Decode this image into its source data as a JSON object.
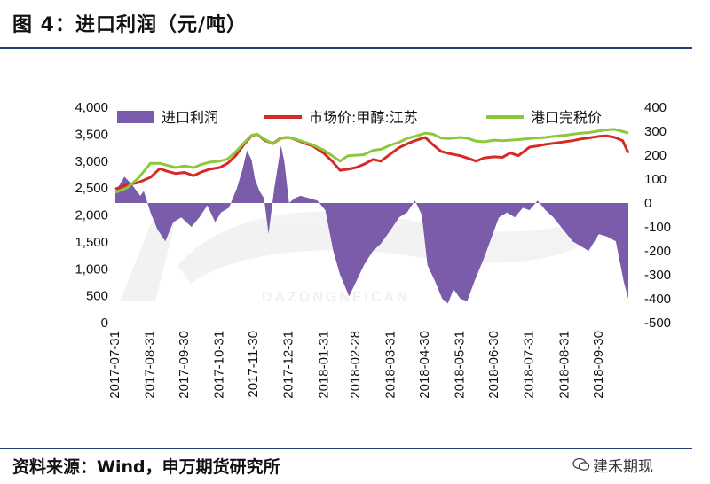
{
  "header": {
    "title": "图 4：进口利润（元/吨）"
  },
  "footer": {
    "source": "资料来源：Wind，申万期货研究所",
    "watermark": "建禾期现"
  },
  "chart_data": {
    "type": "line",
    "series": [
      {
        "name": "进口利润",
        "type": "area",
        "axis": "right",
        "color": "#7a5cab",
        "points": [
          [
            "2017-07-31",
            40
          ],
          [
            "2017-08-03",
            70
          ],
          [
            "2017-08-08",
            110
          ],
          [
            "2017-08-14",
            80
          ],
          [
            "2017-08-22",
            30
          ],
          [
            "2017-08-25",
            50
          ],
          [
            "2017-08-31",
            -40
          ],
          [
            "2017-09-06",
            -110
          ],
          [
            "2017-09-13",
            -160
          ],
          [
            "2017-09-20",
            -80
          ],
          [
            "2017-09-27",
            -60
          ],
          [
            "2017-10-06",
            -100
          ],
          [
            "2017-10-13",
            -60
          ],
          [
            "2017-10-20",
            -10
          ],
          [
            "2017-10-27",
            -80
          ],
          [
            "2017-11-01",
            -40
          ],
          [
            "2017-11-08",
            -20
          ],
          [
            "2017-11-15",
            60
          ],
          [
            "2017-11-20",
            140
          ],
          [
            "2017-11-24",
            220
          ],
          [
            "2017-11-28",
            180
          ],
          [
            "2017-12-01",
            100
          ],
          [
            "2017-12-05",
            50
          ],
          [
            "2017-12-09",
            20
          ],
          [
            "2017-12-13",
            -130
          ],
          [
            "2017-12-18",
            60
          ],
          [
            "2017-12-21",
            150
          ],
          [
            "2017-12-24",
            240
          ],
          [
            "2017-12-27",
            170
          ],
          [
            "2017-12-31",
            0
          ],
          [
            "2018-01-05",
            20
          ],
          [
            "2018-01-10",
            30
          ],
          [
            "2018-01-18",
            20
          ],
          [
            "2018-01-25",
            10
          ],
          [
            "2018-02-01",
            -30
          ],
          [
            "2018-02-08",
            -200
          ],
          [
            "2018-02-14",
            -300
          ],
          [
            "2018-02-22",
            -390
          ],
          [
            "2018-02-28",
            -330
          ],
          [
            "2018-03-07",
            -260
          ],
          [
            "2018-03-15",
            -200
          ],
          [
            "2018-03-22",
            -170
          ],
          [
            "2018-03-31",
            -110
          ],
          [
            "2018-04-07",
            -60
          ],
          [
            "2018-04-14",
            -40
          ],
          [
            "2018-04-21",
            10
          ],
          [
            "2018-04-27",
            -50
          ],
          [
            "2018-05-02",
            -260
          ],
          [
            "2018-05-08",
            -320
          ],
          [
            "2018-05-15",
            -400
          ],
          [
            "2018-05-20",
            -420
          ],
          [
            "2018-05-25",
            -360
          ],
          [
            "2018-05-31",
            -400
          ],
          [
            "2018-06-06",
            -410
          ],
          [
            "2018-06-13",
            -320
          ],
          [
            "2018-06-20",
            -240
          ],
          [
            "2018-06-27",
            -150
          ],
          [
            "2018-07-04",
            -60
          ],
          [
            "2018-07-11",
            -40
          ],
          [
            "2018-07-18",
            -60
          ],
          [
            "2018-07-25",
            -20
          ],
          [
            "2018-07-31",
            -30
          ],
          [
            "2018-08-07",
            10
          ],
          [
            "2018-08-14",
            -30
          ],
          [
            "2018-08-21",
            -60
          ],
          [
            "2018-08-31",
            -120
          ],
          [
            "2018-09-07",
            -160
          ],
          [
            "2018-09-14",
            -180
          ],
          [
            "2018-09-21",
            -200
          ],
          [
            "2018-09-30",
            -130
          ],
          [
            "2018-10-07",
            -140
          ],
          [
            "2018-10-15",
            -160
          ],
          [
            "2018-10-22",
            -330
          ],
          [
            "2018-10-26",
            -400
          ]
        ]
      },
      {
        "name": "市场价:甲醇:江苏",
        "type": "line",
        "axis": "left",
        "color": "#d62a28",
        "points": [
          [
            "2017-07-31",
            2480
          ],
          [
            "2017-08-10",
            2560
          ],
          [
            "2017-08-20",
            2600
          ],
          [
            "2017-08-31",
            2700
          ],
          [
            "2017-09-08",
            2860
          ],
          [
            "2017-09-15",
            2810
          ],
          [
            "2017-09-22",
            2770
          ],
          [
            "2017-09-30",
            2790
          ],
          [
            "2017-10-08",
            2730
          ],
          [
            "2017-10-15",
            2800
          ],
          [
            "2017-10-22",
            2850
          ],
          [
            "2017-10-31",
            2880
          ],
          [
            "2017-11-07",
            2960
          ],
          [
            "2017-11-14",
            3100
          ],
          [
            "2017-11-21",
            3300
          ],
          [
            "2017-11-28",
            3470
          ],
          [
            "2017-12-03",
            3500
          ],
          [
            "2017-12-10",
            3380
          ],
          [
            "2017-12-17",
            3330
          ],
          [
            "2017-12-24",
            3430
          ],
          [
            "2017-12-31",
            3440
          ],
          [
            "2018-01-07",
            3390
          ],
          [
            "2018-01-14",
            3330
          ],
          [
            "2018-01-21",
            3280
          ],
          [
            "2018-01-31",
            3140
          ],
          [
            "2018-02-07",
            3000
          ],
          [
            "2018-02-14",
            2830
          ],
          [
            "2018-02-21",
            2850
          ],
          [
            "2018-02-28",
            2880
          ],
          [
            "2018-03-07",
            2940
          ],
          [
            "2018-03-15",
            3030
          ],
          [
            "2018-03-22",
            3000
          ],
          [
            "2018-03-31",
            3140
          ],
          [
            "2018-04-07",
            3250
          ],
          [
            "2018-04-14",
            3320
          ],
          [
            "2018-04-21",
            3380
          ],
          [
            "2018-04-30",
            3440
          ],
          [
            "2018-05-07",
            3300
          ],
          [
            "2018-05-14",
            3180
          ],
          [
            "2018-05-21",
            3140
          ],
          [
            "2018-05-31",
            3100
          ],
          [
            "2018-06-07",
            3050
          ],
          [
            "2018-06-14",
            3000
          ],
          [
            "2018-06-21",
            3060
          ],
          [
            "2018-06-30",
            3080
          ],
          [
            "2018-07-07",
            3070
          ],
          [
            "2018-07-14",
            3150
          ],
          [
            "2018-07-21",
            3100
          ],
          [
            "2018-07-31",
            3260
          ],
          [
            "2018-08-07",
            3280
          ],
          [
            "2018-08-14",
            3310
          ],
          [
            "2018-08-21",
            3330
          ],
          [
            "2018-08-31",
            3360
          ],
          [
            "2018-09-07",
            3380
          ],
          [
            "2018-09-14",
            3410
          ],
          [
            "2018-09-21",
            3430
          ],
          [
            "2018-09-30",
            3460
          ],
          [
            "2018-10-07",
            3470
          ],
          [
            "2018-10-14",
            3440
          ],
          [
            "2018-10-21",
            3380
          ],
          [
            "2018-10-26",
            3150
          ]
        ]
      },
      {
        "name": "港口完税价",
        "type": "line",
        "axis": "left",
        "color": "#8cc83c",
        "points": [
          [
            "2017-07-31",
            2420
          ],
          [
            "2017-08-10",
            2500
          ],
          [
            "2017-08-20",
            2680
          ],
          [
            "2017-08-31",
            2960
          ],
          [
            "2017-09-08",
            2960
          ],
          [
            "2017-09-15",
            2920
          ],
          [
            "2017-09-22",
            2880
          ],
          [
            "2017-09-30",
            2910
          ],
          [
            "2017-10-08",
            2880
          ],
          [
            "2017-10-15",
            2940
          ],
          [
            "2017-10-22",
            2980
          ],
          [
            "2017-10-31",
            3000
          ],
          [
            "2017-11-07",
            3040
          ],
          [
            "2017-11-14",
            3170
          ],
          [
            "2017-11-21",
            3330
          ],
          [
            "2017-11-28",
            3480
          ],
          [
            "2017-12-03",
            3500
          ],
          [
            "2017-12-10",
            3400
          ],
          [
            "2017-12-17",
            3320
          ],
          [
            "2017-12-24",
            3420
          ],
          [
            "2017-12-31",
            3440
          ],
          [
            "2018-01-07",
            3400
          ],
          [
            "2018-01-14",
            3350
          ],
          [
            "2018-01-21",
            3300
          ],
          [
            "2018-01-31",
            3200
          ],
          [
            "2018-02-07",
            3100
          ],
          [
            "2018-02-14",
            3000
          ],
          [
            "2018-02-21",
            3100
          ],
          [
            "2018-02-28",
            3110
          ],
          [
            "2018-03-07",
            3120
          ],
          [
            "2018-03-15",
            3200
          ],
          [
            "2018-03-22",
            3220
          ],
          [
            "2018-03-31",
            3300
          ],
          [
            "2018-04-07",
            3350
          ],
          [
            "2018-04-14",
            3420
          ],
          [
            "2018-04-21",
            3460
          ],
          [
            "2018-04-30",
            3520
          ],
          [
            "2018-05-07",
            3500
          ],
          [
            "2018-05-14",
            3430
          ],
          [
            "2018-05-21",
            3420
          ],
          [
            "2018-05-31",
            3440
          ],
          [
            "2018-06-07",
            3420
          ],
          [
            "2018-06-14",
            3370
          ],
          [
            "2018-06-21",
            3360
          ],
          [
            "2018-06-30",
            3390
          ],
          [
            "2018-07-07",
            3380
          ],
          [
            "2018-07-14",
            3390
          ],
          [
            "2018-07-21",
            3400
          ],
          [
            "2018-07-31",
            3420
          ],
          [
            "2018-08-07",
            3430
          ],
          [
            "2018-08-14",
            3440
          ],
          [
            "2018-08-21",
            3460
          ],
          [
            "2018-08-31",
            3480
          ],
          [
            "2018-09-07",
            3500
          ],
          [
            "2018-09-14",
            3520
          ],
          [
            "2018-09-21",
            3530
          ],
          [
            "2018-09-30",
            3560
          ],
          [
            "2018-10-07",
            3580
          ],
          [
            "2018-10-14",
            3590
          ],
          [
            "2018-10-21",
            3550
          ],
          [
            "2018-10-26",
            3520
          ]
        ]
      }
    ],
    "left_axis": {
      "ylim": [
        0,
        4000
      ],
      "ticks": [
        0,
        500,
        1000,
        1500,
        2000,
        2500,
        3000,
        3500,
        4000
      ],
      "labels": [
        "0",
        "500",
        "1,000",
        "1,500",
        "2,000",
        "2,500",
        "3,000",
        "3,500",
        "4,000"
      ]
    },
    "right_axis": {
      "ylim": [
        -500,
        400
      ],
      "ticks": [
        -500,
        -400,
        -300,
        -200,
        -100,
        0,
        100,
        200,
        300,
        400
      ],
      "labels": [
        "-500",
        "-400",
        "-300",
        "-200",
        "-100",
        "0",
        "100",
        "200",
        "300",
        "400"
      ]
    },
    "x_ticks": [
      "2017-07-31",
      "2017-08-31",
      "2017-09-30",
      "2017-10-31",
      "2017-11-30",
      "2017-12-31",
      "2018-01-31",
      "2018-02-28",
      "2018-03-31",
      "2018-04-30",
      "2018-05-31",
      "2018-06-30",
      "2018-07-31",
      "2018-08-31",
      "2018-09-30"
    ],
    "xlim": [
      "2017-07-31",
      "2018-10-26"
    ],
    "grid": false,
    "legend": "top"
  }
}
